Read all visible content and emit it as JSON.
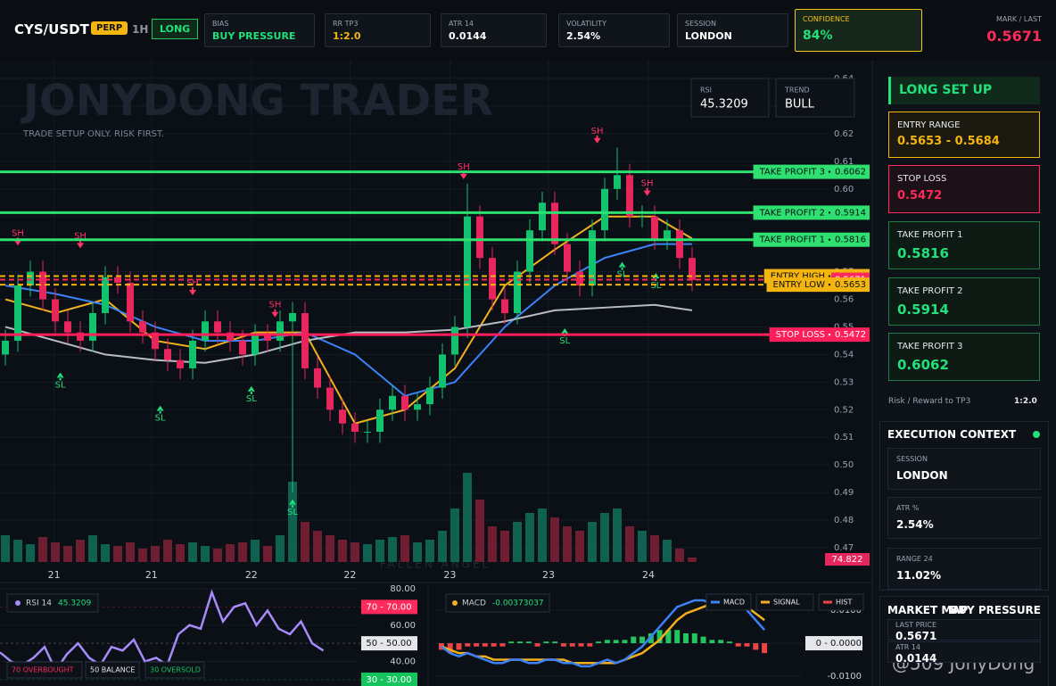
{
  "header": {
    "pair": "CYS/USDT",
    "market": "PERP",
    "timeframe": "1H",
    "side": "LONG",
    "stats": [
      {
        "label": "BIAS",
        "value": "BUY PRESSURE"
      },
      {
        "label": "RR TP3",
        "value": "1:2.0"
      },
      {
        "label": "ATR 14",
        "value": "0.0144"
      },
      {
        "label": "VOLATILITY",
        "value": "2.54%"
      },
      {
        "label": "SESSION",
        "value": "LONDON"
      },
      {
        "label": "CONFIDENCE",
        "value": "84%"
      }
    ],
    "mark_label": "MARK / LAST",
    "mark_value": "0.5671"
  },
  "watermark": {
    "title": "JONYDONG TRADER",
    "subtitle": "TRADE SETUP ONLY. RISK FIRST.",
    "footer": "FALLEN ANGEL",
    "credit": "@509 JonyDong"
  },
  "badges": [
    {
      "label": "RSI",
      "value": "45.3209"
    },
    {
      "label": "TREND",
      "value": "BULL"
    }
  ],
  "side_panel": {
    "setup": {
      "title": "LONG SET UP",
      "cards": [
        {
          "label": "ENTRY RANGE",
          "value": "0.5653 - 0.5684"
        },
        {
          "label": "STOP LOSS",
          "value": "0.5472"
        },
        {
          "label": "TAKE PROFIT 1",
          "value": "0.5816"
        },
        {
          "label": "TAKE PROFIT 2",
          "value": "0.5914"
        },
        {
          "label": "TAKE PROFIT 3",
          "value": "0.6062"
        }
      ],
      "rr_label": "Risk / Reward to TP3",
      "rr_value": "1:2.0"
    },
    "execution": {
      "title": "EXECUTION CONTEXT",
      "items": [
        {
          "label": "SESSION",
          "value": "LONDON"
        },
        {
          "label": "ATR %",
          "value": "2.54%"
        },
        {
          "label": "RANGE 24",
          "value": "11.02%"
        }
      ]
    },
    "market_map": {
      "title": "MARKET MAP",
      "state": "BUY PRESSURE",
      "items": [
        {
          "label": "LAST PRICE",
          "value": "0.5671"
        },
        {
          "label": "ATR 14",
          "value": "0.0144"
        }
      ]
    }
  },
  "chart_data": [
    {
      "type": "candlestick",
      "up_color": "#12c26e",
      "down_color": "#e8265e",
      "grid": true,
      "open": [
        0.54,
        0.545,
        0.565,
        0.57,
        0.56,
        0.552,
        0.548,
        0.545,
        0.555,
        0.568,
        0.566,
        0.552,
        0.548,
        0.542,
        0.538,
        0.535,
        0.545,
        0.552,
        0.548,
        0.545,
        0.54,
        0.547,
        0.545,
        0.552,
        0.555,
        0.535,
        0.528,
        0.52,
        0.515,
        0.512,
        0.512,
        0.52,
        0.525,
        0.52,
        0.522,
        0.528,
        0.54,
        0.55,
        0.59,
        0.575,
        0.56,
        0.555,
        0.57,
        0.585,
        0.595,
        0.58,
        0.57,
        0.565,
        0.585,
        0.6,
        0.605,
        0.59,
        0.59,
        0.582,
        0.585,
        0.575
      ],
      "high": [
        0.549,
        0.569,
        0.574,
        0.574,
        0.564,
        0.556,
        0.552,
        0.559,
        0.572,
        0.572,
        0.57,
        0.556,
        0.552,
        0.546,
        0.542,
        0.549,
        0.556,
        0.556,
        0.552,
        0.549,
        0.551,
        0.551,
        0.556,
        0.559,
        0.559,
        0.539,
        0.532,
        0.524,
        0.519,
        0.516,
        0.524,
        0.529,
        0.529,
        0.526,
        0.532,
        0.544,
        0.554,
        0.602,
        0.594,
        0.579,
        0.564,
        0.574,
        0.589,
        0.599,
        0.599,
        0.584,
        0.574,
        0.589,
        0.604,
        0.615,
        0.609,
        0.594,
        0.594,
        0.589,
        0.589,
        0.579
      ],
      "low": [
        0.536,
        0.541,
        0.561,
        0.556,
        0.548,
        0.544,
        0.541,
        0.541,
        0.551,
        0.562,
        0.548,
        0.544,
        0.538,
        0.534,
        0.531,
        0.531,
        0.541,
        0.544,
        0.541,
        0.536,
        0.536,
        0.541,
        0.541,
        0.49,
        0.531,
        0.524,
        0.516,
        0.511,
        0.508,
        0.508,
        0.508,
        0.516,
        0.516,
        0.516,
        0.518,
        0.524,
        0.536,
        0.546,
        0.571,
        0.556,
        0.551,
        0.551,
        0.566,
        0.581,
        0.576,
        0.566,
        0.561,
        0.561,
        0.581,
        0.596,
        0.586,
        0.586,
        0.578,
        0.578,
        0.571,
        0.563
      ],
      "close": [
        0.545,
        0.565,
        0.57,
        0.56,
        0.552,
        0.548,
        0.545,
        0.555,
        0.568,
        0.566,
        0.552,
        0.548,
        0.542,
        0.538,
        0.535,
        0.545,
        0.552,
        0.548,
        0.545,
        0.54,
        0.547,
        0.545,
        0.552,
        0.555,
        0.535,
        0.528,
        0.52,
        0.515,
        0.512,
        0.512,
        0.52,
        0.525,
        0.52,
        0.522,
        0.528,
        0.54,
        0.55,
        0.59,
        0.575,
        0.56,
        0.555,
        0.57,
        0.585,
        0.595,
        0.58,
        0.57,
        0.565,
        0.585,
        0.6,
        0.605,
        0.59,
        0.59,
        0.582,
        0.585,
        0.575,
        0.567
      ],
      "volume": [
        30,
        25,
        20,
        28,
        22,
        18,
        25,
        30,
        20,
        18,
        22,
        15,
        18,
        25,
        20,
        22,
        18,
        15,
        20,
        22,
        25,
        18,
        30,
        90,
        45,
        35,
        30,
        25,
        22,
        20,
        25,
        28,
        30,
        22,
        25,
        35,
        60,
        100,
        70,
        40,
        35,
        45,
        55,
        60,
        50,
        40,
        35,
        45,
        55,
        60,
        40,
        35,
        30,
        25,
        15,
        5
      ],
      "volume_label": "74.822",
      "xlim": [
        -0.43,
        56
      ],
      "ylim": [
        0.47,
        0.64
      ],
      "yticks": [
        0.47,
        0.48,
        0.49,
        {
          "value": 0.5,
          "label": "0.50"
        },
        0.51,
        0.52,
        0.53,
        0.54,
        0.55,
        0.56,
        0.57,
        0.58,
        0.59,
        {
          "value": 0.6,
          "label": "0.60"
        },
        0.61,
        0.62,
        0.63,
        0.64
      ],
      "xticks": [
        {
          "value": 3.9,
          "label": "21"
        },
        {
          "value": 11.7,
          "label": "21"
        },
        {
          "value": 19.7,
          "label": "22"
        },
        {
          "value": 27.6,
          "label": "22"
        },
        {
          "value": 35.6,
          "label": "23"
        },
        {
          "value": 43.5,
          "label": "23"
        },
        {
          "value": 51.5,
          "label": "24"
        }
      ],
      "lines": [
        {
          "color": "#f2b01e",
          "x": [
            0,
            4,
            8,
            12,
            16,
            20,
            24,
            28,
            32,
            36,
            40,
            44,
            48,
            52,
            55
          ],
          "values": [
            0.56,
            0.555,
            0.56,
            0.545,
            0.542,
            0.548,
            0.548,
            0.515,
            0.52,
            0.535,
            0.565,
            0.578,
            0.59,
            0.59,
            0.582
          ]
        },
        {
          "color": "#3b82f6",
          "x": [
            0,
            4,
            8,
            12,
            16,
            20,
            24,
            28,
            32,
            36,
            40,
            44,
            48,
            52,
            55
          ],
          "values": [
            0.565,
            0.562,
            0.558,
            0.55,
            0.545,
            0.545,
            0.548,
            0.54,
            0.525,
            0.53,
            0.55,
            0.565,
            0.575,
            0.58,
            0.58
          ]
        },
        {
          "color": "#b8bcc4",
          "x": [
            0,
            4,
            8,
            12,
            16,
            20,
            24,
            28,
            32,
            36,
            40,
            44,
            48,
            52,
            55
          ],
          "values": [
            0.55,
            0.545,
            0.54,
            0.538,
            0.537,
            0.54,
            0.545,
            0.548,
            0.548,
            0.549,
            0.552,
            0.556,
            0.557,
            0.558,
            0.556
          ]
        }
      ],
      "levels": [
        {
          "label": "TAKE PROFIT 3",
          "value": 0.6062,
          "color": "#2ee06f"
        },
        {
          "label": "TAKE PROFIT 2",
          "value": 0.5914,
          "color": "#2ee06f"
        },
        {
          "label": "TAKE PROFIT 1",
          "value": 0.5816,
          "color": "#2ee06f"
        },
        {
          "label": "ENTRY HIGH",
          "value": 0.5684,
          "color": "#f5b50f",
          "dashed": true
        },
        {
          "value": 0.5671,
          "color": "#ff2a5c",
          "dashed": true
        },
        {
          "label": "ENTRY LOW",
          "value": 0.5653,
          "color": "#f5b50f",
          "dashed": true
        },
        {
          "label": "STOP LOSS",
          "value": 0.5472,
          "color": "#ff1f5a"
        }
      ],
      "annotations": [
        {
          "label": "SH",
          "x": 1,
          "y": 0.584
        },
        {
          "label": "SH",
          "x": 6,
          "y": 0.583
        },
        {
          "label": "SH",
          "x": 15,
          "y": 0.566
        },
        {
          "label": "SH",
          "x": 21.6,
          "y": 0.558
        },
        {
          "label": "SH",
          "x": 36.7,
          "y": 0.608
        },
        {
          "label": "SH",
          "x": 47.4,
          "y": 0.621
        },
        {
          "label": "SH",
          "x": 51.4,
          "y": 0.602
        },
        {
          "label": "SL",
          "x": 4.4,
          "y": 0.529
        },
        {
          "label": "SL",
          "x": 12.4,
          "y": 0.517
        },
        {
          "label": "SL",
          "x": 19.7,
          "y": 0.524
        },
        {
          "label": "SL",
          "x": 23,
          "y": 0.483
        },
        {
          "label": "SL",
          "x": 44.8,
          "y": 0.545
        },
        {
          "label": "SL",
          "x": 49.4,
          "y": 0.569
        },
        {
          "label": "SL",
          "x": 52.1,
          "y": 0.565
        }
      ]
    },
    {
      "type": "line",
      "title": "RSI 14",
      "last_value": 45.3209,
      "color": "#a78bfa",
      "values": [
        45,
        40,
        38,
        42,
        48,
        35,
        44,
        50,
        42,
        38,
        48,
        46,
        52,
        40,
        42,
        38,
        55,
        60,
        58,
        78,
        62,
        70,
        72,
        60,
        68,
        58,
        55,
        62,
        50,
        46
      ],
      "xlim": [
        0,
        36
      ],
      "ylim": [
        27,
        80
      ],
      "yticks": [
        {
          "value": 80,
          "label": "80.00"
        },
        {
          "value": 60,
          "label": "60.00"
        },
        {
          "value": 40,
          "label": "40.00"
        }
      ],
      "levels": [
        {
          "value": 70,
          "label": "70 - 70.00",
          "color": "#ff2a5c"
        },
        {
          "value": 50,
          "label": "50 - 50.00",
          "color": "#e5e7eb"
        },
        {
          "value": 30,
          "label": "30 - 30.00",
          "color": "#16c45e"
        }
      ],
      "legend": [
        "70 OVERBOUGHT",
        "50 BALANCE",
        "30 OVERSOLD"
      ]
    },
    {
      "type": "macd",
      "title": "MACD",
      "last_value": -0.00373037,
      "pos_color": "#22c55e",
      "series": [
        {
          "name": "MACD",
          "color": "#3b82f6",
          "values": [
            -0.001,
            -0.003,
            -0.004,
            -0.003,
            -0.004,
            -0.005,
            -0.006,
            -0.006,
            -0.005,
            -0.005,
            -0.006,
            -0.006,
            -0.005,
            -0.005,
            -0.006,
            -0.006,
            -0.007,
            -0.007,
            -0.006,
            -0.005,
            -0.006,
            -0.005,
            -0.003,
            -0.001,
            0.002,
            0.005,
            0.008,
            0.011,
            0.012,
            0.013,
            0.013,
            0.012,
            0.013,
            0.013,
            0.012,
            0.01,
            0.007,
            0.004
          ]
        },
        {
          "name": "SIGNAL",
          "color": "#f2b01e",
          "values": [
            -0.001,
            -0.002,
            -0.003,
            -0.003,
            -0.004,
            -0.004,
            -0.005,
            -0.005,
            -0.005,
            -0.005,
            -0.005,
            -0.005,
            -0.005,
            -0.005,
            -0.005,
            -0.006,
            -0.006,
            -0.006,
            -0.006,
            -0.006,
            -0.006,
            -0.005,
            -0.004,
            -0.003,
            -0.001,
            0.001,
            0.004,
            0.007,
            0.009,
            0.01,
            0.011,
            0.012,
            0.012,
            0.012,
            0.012,
            0.011,
            0.009,
            0.007
          ]
        },
        {
          "name": "HIST",
          "color": "#ef4444",
          "values": [
            -0.002,
            -0.003,
            -0.002,
            -0.001,
            -0.001,
            -0.001,
            -0.001,
            -0.001,
            0.0005,
            0.0005,
            0.0005,
            -0.001,
            0.0005,
            0.0005,
            -0.001,
            -0.001,
            -0.001,
            -0.001,
            0.0005,
            0.001,
            0.001,
            0.001,
            0.002,
            0.002,
            0.003,
            0.004,
            0.004,
            0.004,
            0.003,
            0.003,
            0.002,
            0.001,
            0.001,
            0.0005,
            -0.001,
            -0.001,
            -0.002,
            -0.003
          ]
        }
      ],
      "xlim": [
        -0.5,
        37.5
      ],
      "ylim": [
        -0.0127,
        0.0165
      ],
      "yticks": [
        {
          "value": 0.01,
          "label": "0.0100"
        },
        {
          "value": 0,
          "label": "0 - 0.0000"
        },
        {
          "value": -0.01,
          "label": "-0.0100"
        }
      ]
    }
  ]
}
